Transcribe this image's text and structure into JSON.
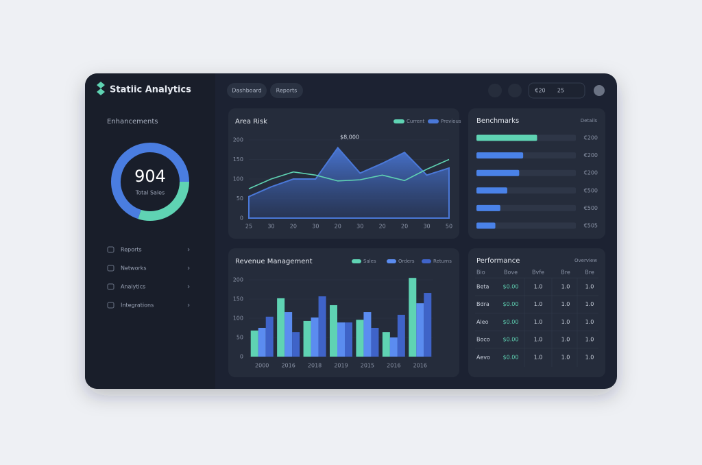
{
  "header": {
    "title": "Statiic Analytics",
    "tabs": [
      "Dashboard",
      "Reports"
    ],
    "period": [
      "€20",
      "25"
    ]
  },
  "sidebar": {
    "section": "Enhancements",
    "donut": {
      "total": "904",
      "caption": "Total Sales",
      "values": [
        70,
        30
      ],
      "colors": [
        "#4a7de0",
        "#5fd3b3"
      ]
    },
    "menu": [
      "Reports",
      "Networks",
      "Analytics",
      "Integrations"
    ]
  },
  "area_chart": {
    "type": "area",
    "title": "Area Risk",
    "annotation": "$8,000",
    "categories": [
      "25",
      "30",
      "20",
      "30",
      "20",
      "30",
      "20",
      "20",
      "30",
      "50"
    ],
    "ylim": [
      0,
      200
    ],
    "yticks": [
      0,
      50,
      100,
      150,
      200
    ],
    "grid": true,
    "series": [
      {
        "name": "Current",
        "color": "#5fd3b3",
        "values": [
          75,
          100,
          118,
          110,
          95,
          98,
          110,
          96,
          125,
          150
        ]
      },
      {
        "name": "Previous",
        "color": "#4a78d8",
        "values": [
          55,
          80,
          100,
          100,
          180,
          115,
          140,
          168,
          110,
          128
        ]
      }
    ]
  },
  "bar_list": {
    "type": "hbar",
    "title": "Benchmarks",
    "subtitle": "Details",
    "xlim": [
      0,
      100
    ],
    "values": [
      61,
      47,
      43,
      31,
      24,
      19
    ],
    "labels": [
      "€200",
      "€200",
      "€200",
      "€500",
      "€500",
      "€505"
    ],
    "color": "#4a82e8",
    "highlight": 0,
    "highlight_color": "#5fd3b3"
  },
  "bar_chart": {
    "type": "bar",
    "title": "Revenue Management",
    "categories": [
      "2000",
      "2016",
      "2018",
      "2019",
      "2015",
      "2016",
      "2016"
    ],
    "ylim": [
      0,
      210
    ],
    "yticks": [
      0,
      50,
      100,
      150,
      200
    ],
    "series": [
      {
        "name": "Sales",
        "color": "#5fd3b3",
        "values": [
          68,
          152,
          93,
          134,
          96,
          64,
          205
        ]
      },
      {
        "name": "Orders",
        "color": "#5b8cf0",
        "values": [
          75,
          116,
          102,
          89,
          116,
          50,
          139
        ]
      },
      {
        "name": "Returns",
        "color": "#3f63c8",
        "values": [
          104,
          64,
          157,
          89,
          75,
          109,
          166
        ]
      }
    ]
  },
  "table": {
    "title": "Performance",
    "subtitle": "Overview",
    "header": [
      "Bio",
      "Bove",
      "Bvfe",
      "Bre",
      "Bre"
    ],
    "rows": [
      [
        "Beta",
        "$0.00",
        "1.0",
        "1.0",
        "1.0"
      ],
      [
        "Bdra",
        "$0.00",
        "1.0",
        "1.0",
        "1.0"
      ],
      [
        "Aleo",
        "$0.00",
        "1.0",
        "1.0",
        "1.0"
      ],
      [
        "Boco",
        "$0.00",
        "1.0",
        "1.0",
        "1.0"
      ],
      [
        "Aevo",
        "$0.00",
        "1.0",
        "1.0",
        "1.0"
      ]
    ]
  }
}
